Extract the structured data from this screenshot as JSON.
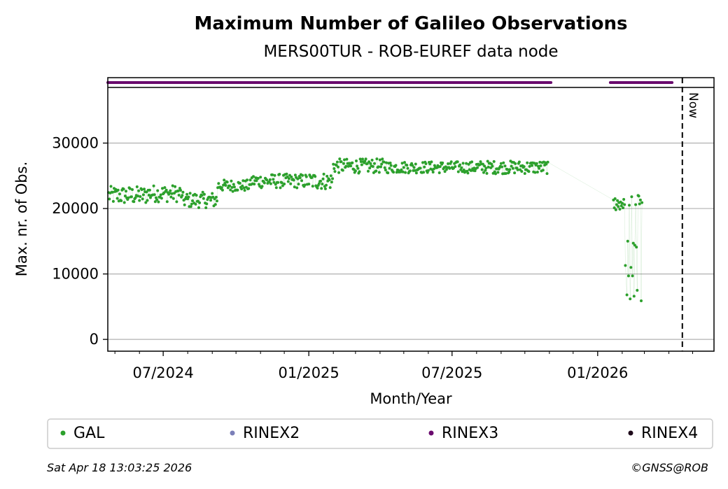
{
  "chart_data": {
    "type": "scatter",
    "title": "Maximum Number of Galileo Observations",
    "subtitle": "MERS00TUR - ROB-EUREF data node",
    "xlabel": "Month/Year",
    "ylabel": "Max. nr. of Obs.",
    "xlim": [
      "2024-04-22",
      "2026-05-28"
    ],
    "ylim": [
      -1800,
      38500
    ],
    "yticks": [
      0,
      10000,
      20000,
      30000
    ],
    "xticks": [
      {
        "date": "2024-07-01",
        "label": "07/2024"
      },
      {
        "date": "2025-01-01",
        "label": "01/2025"
      },
      {
        "date": "2025-07-01",
        "label": "07/2025"
      },
      {
        "date": "2026-01-01",
        "label": "01/2026"
      }
    ],
    "grid": "horizontal",
    "now_marker": {
      "date": "2026-04-18",
      "label": "Now"
    },
    "series": [
      {
        "name": "GAL",
        "color": "#2ca02c",
        "segments": [
          {
            "start": "2024-04-23",
            "end": "2024-06-10",
            "mean": 22000,
            "spread": 1400
          },
          {
            "start": "2024-06-10",
            "end": "2024-07-25",
            "mean": 22300,
            "spread": 1300
          },
          {
            "start": "2024-07-25",
            "end": "2024-09-08",
            "mean": 21300,
            "spread": 1200
          },
          {
            "start": "2024-09-08",
            "end": "2024-10-20",
            "mean": 23500,
            "spread": 900
          },
          {
            "start": "2024-10-20",
            "end": "2024-12-31",
            "mean": 24200,
            "spread": 1100
          },
          {
            "start": "2025-01-01",
            "end": "2025-02-01",
            "mean": 24200,
            "spread": 1300
          },
          {
            "start": "2025-02-01",
            "end": "2025-04-10",
            "mean": 26500,
            "spread": 1100
          },
          {
            "start": "2025-04-10",
            "end": "2025-07-31",
            "mean": 26300,
            "spread": 900
          },
          {
            "start": "2025-07-31",
            "end": "2025-10-31",
            "mean": 26300,
            "spread": 1000
          }
        ],
        "points": [
          {
            "x": "2026-01-21",
            "y": 21300
          },
          {
            "x": "2026-01-22",
            "y": 20100
          },
          {
            "x": "2026-01-23",
            "y": 21500
          },
          {
            "x": "2026-01-24",
            "y": 19800
          },
          {
            "x": "2026-01-25",
            "y": 20600
          },
          {
            "x": "2026-01-26",
            "y": 21200
          },
          {
            "x": "2026-01-27",
            "y": 20300
          },
          {
            "x": "2026-01-28",
            "y": 20900
          },
          {
            "x": "2026-01-29",
            "y": 19900
          },
          {
            "x": "2026-01-30",
            "y": 21000
          },
          {
            "x": "2026-01-31",
            "y": 20400
          },
          {
            "x": "2026-02-01",
            "y": 20800
          },
          {
            "x": "2026-02-02",
            "y": 20100
          },
          {
            "x": "2026-02-03",
            "y": 21400
          },
          {
            "x": "2026-02-04",
            "y": 20600
          },
          {
            "x": "2026-02-05",
            "y": 11300
          },
          {
            "x": "2026-02-07",
            "y": 6800
          },
          {
            "x": "2026-02-08",
            "y": 15000
          },
          {
            "x": "2026-02-09",
            "y": 9700
          },
          {
            "x": "2026-02-10",
            "y": 20500
          },
          {
            "x": "2026-02-11",
            "y": 6200
          },
          {
            "x": "2026-02-12",
            "y": 11000
          },
          {
            "x": "2026-02-13",
            "y": 21800
          },
          {
            "x": "2026-02-14",
            "y": 9700
          },
          {
            "x": "2026-02-15",
            "y": 14700
          },
          {
            "x": "2026-02-16",
            "y": 6600
          },
          {
            "x": "2026-02-17",
            "y": 14400
          },
          {
            "x": "2026-02-18",
            "y": 20600
          },
          {
            "x": "2026-02-19",
            "y": 14100
          },
          {
            "x": "2026-02-20",
            "y": 7500
          },
          {
            "x": "2026-02-21",
            "y": 22000
          },
          {
            "x": "2026-02-22",
            "y": 21900
          },
          {
            "x": "2026-02-23",
            "y": 20700
          },
          {
            "x": "2026-02-24",
            "y": 21300
          },
          {
            "x": "2026-02-25",
            "y": 5900
          },
          {
            "x": "2026-02-26",
            "y": 20900
          }
        ]
      },
      {
        "name": "RINEX2",
        "color": "#7b7fb8",
        "points": []
      },
      {
        "name": "RINEX3",
        "color": "#6a0a6e",
        "ranges": [
          {
            "start": "2024-04-22",
            "end": "2025-11-03"
          },
          {
            "start": "2026-01-17",
            "end": "2026-04-05"
          }
        ]
      },
      {
        "name": "RINEX4",
        "color": "#1e0a1a",
        "points": []
      }
    ]
  },
  "legend": {
    "items": [
      {
        "label": "GAL",
        "color": "#2ca02c"
      },
      {
        "label": "RINEX2",
        "color": "#7b7fb8"
      },
      {
        "label": "RINEX3",
        "color": "#6a0a6e"
      },
      {
        "label": "RINEX4",
        "color": "#1e0a1a"
      }
    ]
  },
  "footer": {
    "timestamp": "Sat Apr 18 13:03:25 2026",
    "copyright": "©GNSS@ROB"
  }
}
